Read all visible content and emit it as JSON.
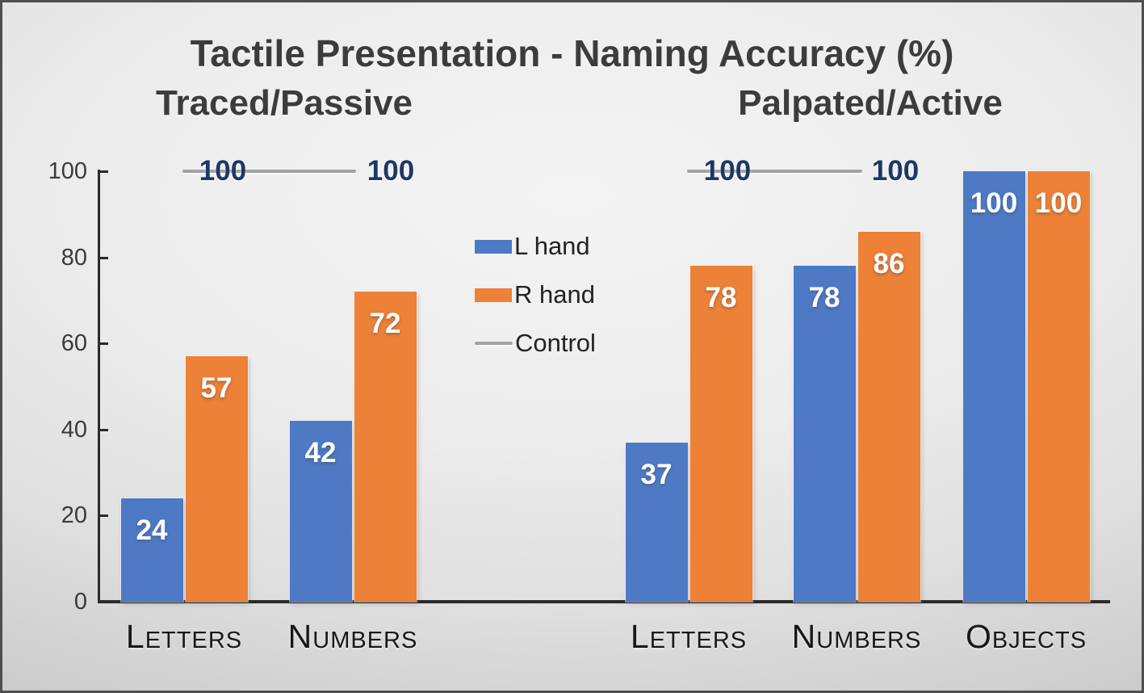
{
  "figure": {
    "title": "Tactile Presentation - Naming Accuracy (%)"
  },
  "chart_data": {
    "type": "bar",
    "title": "Tactile Presentation - Naming Accuracy (%)",
    "ylim": [
      0,
      100
    ],
    "yticks": [
      0,
      20,
      40,
      60,
      80,
      100
    ],
    "grid": false,
    "legend_position": "center between panels",
    "colors": {
      "l_hand": "#4d79c5",
      "r_hand": "#ec8137",
      "control": "#a2a2a2",
      "bar_value_label": "#ffffff",
      "control_value_label": "#1e3766",
      "title_text": "#3c3c3c"
    },
    "panels": [
      {
        "label": "Traced/Passive",
        "categories": [
          "Letters",
          "Numbers"
        ],
        "series": [
          {
            "name": "L hand",
            "values": [
              24,
              42
            ]
          },
          {
            "name": "R hand",
            "values": [
              57,
              72
            ]
          }
        ],
        "control": {
          "name": "Control",
          "values": [
            100,
            100
          ],
          "labels": [
            "100",
            "100"
          ],
          "span_categories": [
            "Letters",
            "Numbers"
          ]
        }
      },
      {
        "label": "Palpated/Active",
        "categories": [
          "Letters",
          "Numbers",
          "Objects"
        ],
        "series": [
          {
            "name": "L hand",
            "values": [
              37,
              78,
              100
            ]
          },
          {
            "name": "R hand",
            "values": [
              78,
              86,
              100
            ]
          }
        ],
        "control": {
          "name": "Control",
          "values": [
            100,
            100
          ],
          "labels": [
            "100",
            "100"
          ],
          "span_categories": [
            "Letters",
            "Numbers"
          ]
        }
      }
    ],
    "legend": [
      {
        "label": "L hand",
        "marker": "box",
        "color": "#4d79c5"
      },
      {
        "label": "R hand",
        "marker": "box",
        "color": "#ec8137"
      },
      {
        "label": "Control",
        "marker": "line",
        "color": "#a2a2a2"
      }
    ]
  }
}
